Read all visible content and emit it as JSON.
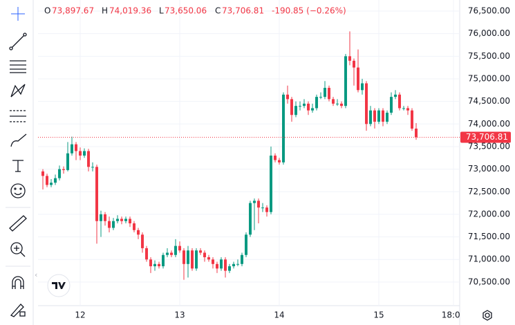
{
  "chart_data": {
    "type": "candlestick",
    "header": {
      "open_label": "O",
      "open": "73,897.67",
      "high_label": "H",
      "high": "74,019.36",
      "low_label": "L",
      "low": "73,650.06",
      "close_label": "C",
      "close": "73,706.81",
      "change": "-190.85 (−0.26%)"
    },
    "x": [
      -9,
      -8,
      -7,
      -6,
      -5,
      -4,
      -3,
      -2,
      -1,
      0,
      1,
      2,
      3,
      4,
      5,
      6,
      7,
      8,
      9,
      10,
      11,
      12,
      13,
      14,
      15,
      16,
      17,
      18,
      19,
      20,
      21,
      22,
      23,
      24,
      25,
      26,
      27,
      28,
      29,
      30,
      31,
      32,
      33,
      34,
      35,
      36,
      37,
      38,
      39,
      40,
      41,
      42,
      43,
      44,
      45,
      46,
      47,
      48,
      49,
      50,
      51,
      52,
      53,
      54,
      55,
      56,
      57,
      58,
      59,
      60,
      61,
      62,
      63,
      64,
      65,
      66,
      67,
      68,
      69,
      70,
      71,
      72,
      73,
      74,
      75,
      76,
      77,
      78,
      79,
      80,
      81
    ],
    "open": [
      72950,
      72850,
      72650,
      72700,
      72800,
      73000,
      72980,
      73350,
      73550,
      73400,
      73300,
      73400,
      73050,
      73050,
      71850,
      72000,
      71850,
      71700,
      71850,
      71900,
      71850,
      71900,
      71800,
      71650,
      71550,
      71250,
      71000,
      70850,
      70900,
      70850,
      71100,
      71150,
      71100,
      71300,
      71200,
      70900,
      71200,
      70800,
      71200,
      71150,
      71050,
      71000,
      70900,
      70800,
      71000,
      70750,
      70850,
      70900,
      70900,
      71100,
      71550,
      72250,
      72300,
      72150,
      72150,
      72050,
      73300,
      73200,
      73150,
      74650,
      74550,
      74200,
      74400,
      74400,
      74450,
      74300,
      74350,
      74600,
      74600,
      74800,
      74550,
      74450,
      74450,
      74400,
      75500,
      75400,
      75250,
      74750,
      74900,
      74000,
      74300,
      74050,
      74300,
      74050,
      74250,
      74600,
      74650,
      74350,
      74350,
      74300,
      73897.67
    ],
    "high": [
      73000,
      72900,
      72780,
      72880,
      73080,
      73060,
      73600,
      73720,
      73600,
      73480,
      73460,
      73450,
      73150,
      73100,
      72080,
      72050,
      71950,
      71920,
      71980,
      71950,
      71950,
      71950,
      71850,
      71700,
      71600,
      71300,
      71050,
      70980,
      70950,
      71150,
      71250,
      71200,
      71450,
      71400,
      71250,
      71300,
      71250,
      71250,
      71250,
      71200,
      71100,
      71050,
      70950,
      71050,
      71050,
      70900,
      70950,
      71000,
      71150,
      71600,
      72300,
      72350,
      72350,
      72250,
      72200,
      73500,
      73350,
      73250,
      74700,
      74850,
      74600,
      74500,
      74500,
      74550,
      74500,
      74450,
      74650,
      74700,
      74950,
      74850,
      74600,
      74550,
      74500,
      75550,
      76050,
      75450,
      75650,
      75000,
      74950,
      74400,
      74350,
      74350,
      74350,
      74300,
      74700,
      74750,
      74700,
      74400,
      74400,
      74350,
      74019.36
    ],
    "low": [
      72550,
      72600,
      72600,
      72650,
      72750,
      72900,
      72950,
      73300,
      73200,
      73200,
      73250,
      72950,
      72950,
      71350,
      71500,
      71750,
      71600,
      71650,
      71800,
      71780,
      71800,
      71720,
      71600,
      71450,
      71150,
      70950,
      70700,
      70750,
      70800,
      70800,
      71050,
      71050,
      71050,
      71150,
      70550,
      70600,
      70750,
      70750,
      71100,
      70950,
      70950,
      70800,
      70700,
      70750,
      70600,
      70700,
      70800,
      70850,
      70850,
      71050,
      71500,
      71650,
      71800,
      72050,
      71950,
      72000,
      73150,
      73100,
      73100,
      74450,
      74050,
      74150,
      74300,
      74350,
      74200,
      74250,
      74300,
      74550,
      74550,
      74500,
      74400,
      74400,
      74350,
      74350,
      75300,
      74850,
      74700,
      74650,
      73850,
      73950,
      73900,
      74000,
      73950,
      74000,
      74200,
      74550,
      74300,
      74300,
      74200,
      73850,
      73650.06
    ],
    "close": [
      72850,
      72650,
      72700,
      72800,
      73000,
      72980,
      73350,
      73550,
      73400,
      73300,
      73400,
      73050,
      73050,
      71850,
      72000,
      71850,
      71700,
      71850,
      71900,
      71850,
      71900,
      71800,
      71650,
      71550,
      71250,
      71000,
      70850,
      70900,
      70850,
      71100,
      71150,
      71100,
      71300,
      71200,
      70900,
      71200,
      70800,
      71200,
      71150,
      71050,
      71000,
      70900,
      70800,
      71000,
      70750,
      70850,
      70900,
      70900,
      71100,
      71550,
      72250,
      72300,
      72150,
      72150,
      72050,
      73300,
      73200,
      73150,
      74650,
      74550,
      74200,
      74400,
      74400,
      74450,
      74300,
      74350,
      74600,
      74600,
      74800,
      74550,
      74450,
      74450,
      74400,
      75500,
      75400,
      75250,
      74750,
      74900,
      74000,
      74300,
      74050,
      74300,
      74050,
      74250,
      74600,
      74650,
      74350,
      74350,
      74300,
      73897.67,
      73706.81
    ],
    "up_color": "#089981",
    "down_color": "#f23645",
    "xlim": [
      -10.17,
      91.5
    ],
    "ylim": [
      69978,
      76745
    ],
    "xticks": [
      {
        "value": 0,
        "label": "12"
      },
      {
        "value": 24,
        "label": "13"
      },
      {
        "value": 48,
        "label": "14"
      },
      {
        "value": 72,
        "label": "15"
      },
      {
        "value": 90,
        "label": "18:00"
      }
    ],
    "yticks": [
      {
        "value": 70500,
        "label": "70,500.00"
      },
      {
        "value": 71000,
        "label": "71,000.00"
      },
      {
        "value": 71500,
        "label": "71,500.00"
      },
      {
        "value": 72000,
        "label": "72,000.00"
      },
      {
        "value": 72500,
        "label": "72,500.00"
      },
      {
        "value": 73000,
        "label": "73,000.00"
      },
      {
        "value": 73500,
        "label": "73,500.00"
      },
      {
        "value": 74000,
        "label": "74,000.00"
      },
      {
        "value": 74500,
        "label": "74,500.00"
      },
      {
        "value": 75000,
        "label": "75,000.00"
      },
      {
        "value": 75500,
        "label": "75,500.00"
      },
      {
        "value": 76000,
        "label": "76,000.00"
      },
      {
        "value": 76500,
        "label": "76,500.00"
      }
    ],
    "last_price": {
      "value": 73706.81,
      "label": "73,706.81"
    },
    "grid": true
  }
}
